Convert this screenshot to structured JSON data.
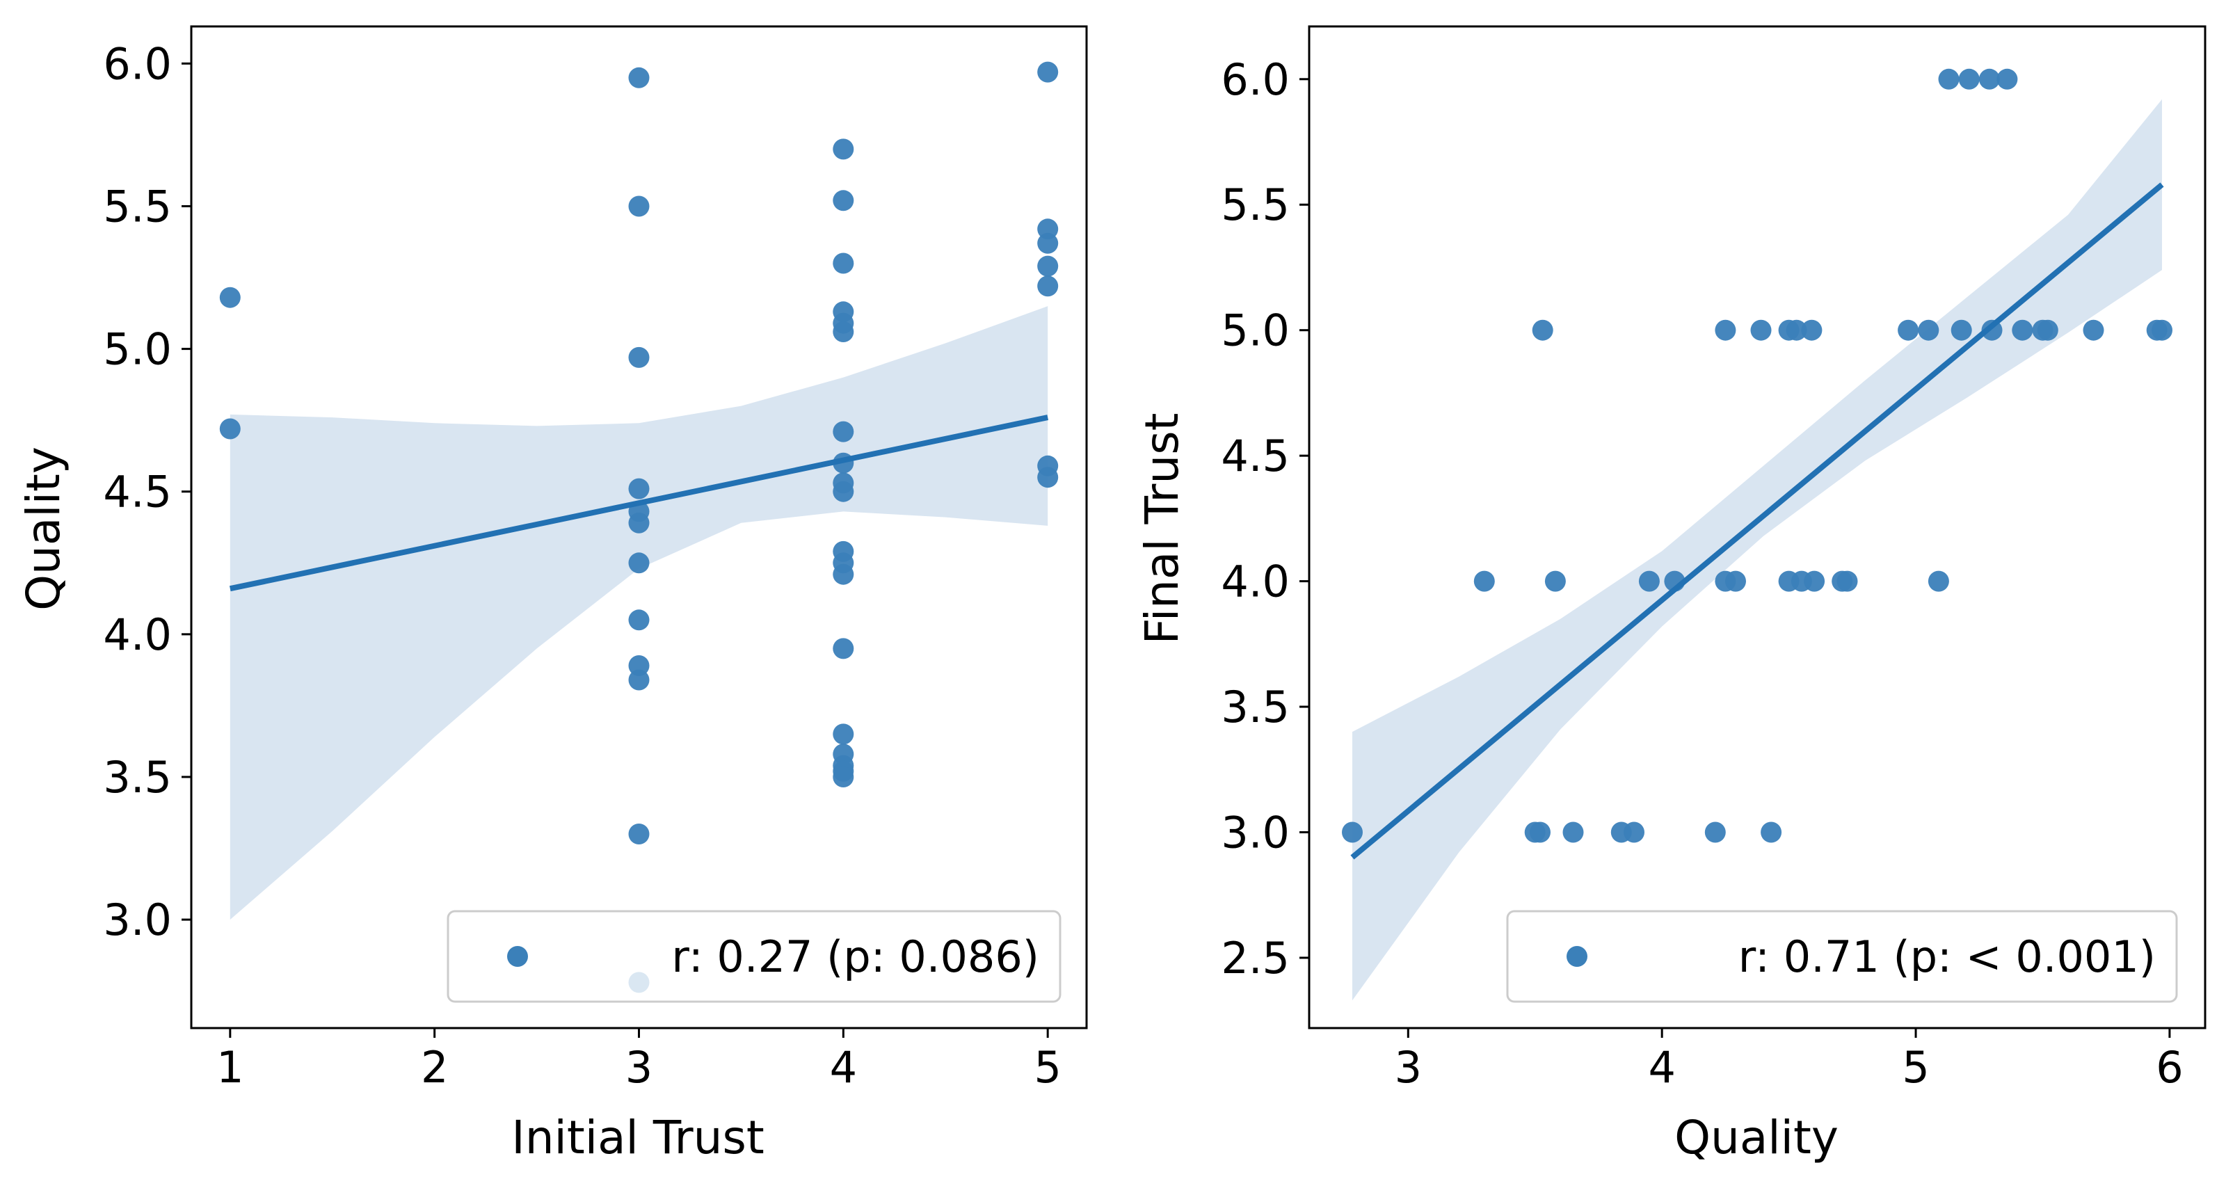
{
  "chart_data": [
    {
      "type": "scatter",
      "xlabel": "Initial Trust",
      "ylabel": "Quality",
      "xlim": [
        0.81,
        5.19
      ],
      "ylim": [
        2.62,
        6.13
      ],
      "xticks": [
        "1",
        "2",
        "3",
        "4",
        "5"
      ],
      "yticks": [
        "3.0",
        "3.5",
        "4.0",
        "4.5",
        "5.0",
        "5.5",
        "6.0"
      ],
      "legend": {
        "label": "r: 0.27 (p: 0.086)",
        "location": "lower right"
      },
      "points": [
        [
          1,
          5.18
        ],
        [
          1,
          4.72
        ],
        [
          3,
          5.95
        ],
        [
          3,
          5.5
        ],
        [
          3,
          4.97
        ],
        [
          3,
          4.51
        ],
        [
          3,
          4.43
        ],
        [
          3,
          4.39
        ],
        [
          3,
          4.25
        ],
        [
          3,
          4.05
        ],
        [
          3,
          3.89
        ],
        [
          3,
          3.84
        ],
        [
          3,
          3.3
        ],
        [
          3,
          2.78
        ],
        [
          4,
          5.7
        ],
        [
          4,
          5.52
        ],
        [
          4,
          5.3
        ],
        [
          4,
          5.13
        ],
        [
          4,
          5.09
        ],
        [
          4,
          5.06
        ],
        [
          4,
          4.71
        ],
        [
          4,
          4.6
        ],
        [
          4,
          4.53
        ],
        [
          4,
          4.5
        ],
        [
          4,
          4.29
        ],
        [
          4,
          4.25
        ],
        [
          4,
          4.21
        ],
        [
          4,
          3.95
        ],
        [
          4,
          3.65
        ],
        [
          4,
          3.58
        ],
        [
          4,
          3.54
        ],
        [
          4,
          3.52
        ],
        [
          4,
          3.5
        ],
        [
          5,
          5.97
        ],
        [
          5,
          5.42
        ],
        [
          5,
          5.37
        ],
        [
          5,
          5.29
        ],
        [
          5,
          5.22
        ],
        [
          5,
          4.59
        ],
        [
          5,
          4.55
        ]
      ],
      "fit_line": {
        "x": [
          1,
          5
        ],
        "y": [
          4.16,
          4.76
        ]
      },
      "ci_band": {
        "x": [
          1,
          1.5,
          2,
          2.5,
          3,
          3.5,
          4,
          4.5,
          5
        ],
        "lower": [
          3.0,
          3.31,
          3.64,
          3.95,
          4.23,
          4.39,
          4.43,
          4.41,
          4.38
        ],
        "upper": [
          4.77,
          4.76,
          4.74,
          4.73,
          4.74,
          4.8,
          4.9,
          5.02,
          5.15
        ]
      },
      "colors": {
        "points": "#3b80b9",
        "line": "#2271b3",
        "band": "#d9e5f1"
      }
    },
    {
      "type": "scatter",
      "xlabel": "Quality",
      "ylabel": "Final Trust",
      "xlim": [
        2.61,
        6.14
      ],
      "ylim": [
        2.22,
        6.21
      ],
      "xticks": [
        "3",
        "4",
        "5",
        "6"
      ],
      "yticks": [
        "2.5",
        "3.0",
        "3.5",
        "4.0",
        "4.5",
        "5.0",
        "5.5",
        "6.0"
      ],
      "legend": {
        "label": "r: 0.71 (p: < 0.001)",
        "location": "lower right"
      },
      "points": [
        [
          5.13,
          6
        ],
        [
          5.21,
          6
        ],
        [
          5.29,
          6
        ],
        [
          5.36,
          6
        ],
        [
          3.53,
          5
        ],
        [
          4.25,
          5
        ],
        [
          4.39,
          5
        ],
        [
          4.5,
          5
        ],
        [
          4.53,
          5
        ],
        [
          4.59,
          5
        ],
        [
          4.97,
          5
        ],
        [
          5.05,
          5
        ],
        [
          5.18,
          5
        ],
        [
          5.3,
          5
        ],
        [
          5.42,
          5
        ],
        [
          5.5,
          5
        ],
        [
          5.52,
          5
        ],
        [
          5.7,
          5
        ],
        [
          5.95,
          5
        ],
        [
          5.97,
          5
        ],
        [
          3.3,
          4
        ],
        [
          3.58,
          4
        ],
        [
          3.95,
          4
        ],
        [
          4.05,
          4
        ],
        [
          4.25,
          4
        ],
        [
          4.29,
          4
        ],
        [
          4.5,
          4
        ],
        [
          4.55,
          4
        ],
        [
          4.6,
          4
        ],
        [
          4.71,
          4
        ],
        [
          4.73,
          4
        ],
        [
          5.09,
          4
        ],
        [
          2.78,
          3
        ],
        [
          3.5,
          3
        ],
        [
          3.52,
          3
        ],
        [
          3.65,
          3
        ],
        [
          3.84,
          3
        ],
        [
          3.89,
          3
        ],
        [
          4.21,
          3
        ],
        [
          4.43,
          3
        ]
      ],
      "fit_line": {
        "x": [
          2.78,
          5.97
        ],
        "y": [
          2.9,
          5.58
        ]
      },
      "ci_band": {
        "x": [
          2.78,
          3.2,
          3.6,
          4.0,
          4.4,
          4.8,
          5.2,
          5.6,
          5.97
        ],
        "lower": [
          2.33,
          2.92,
          3.41,
          3.82,
          4.18,
          4.48,
          4.73,
          4.99,
          5.24
        ],
        "upper": [
          3.4,
          3.62,
          3.85,
          4.12,
          4.46,
          4.8,
          5.13,
          5.46,
          5.92
        ]
      },
      "colors": {
        "points": "#3b80b9",
        "line": "#2271b3",
        "band": "#d9e5f1"
      }
    }
  ]
}
